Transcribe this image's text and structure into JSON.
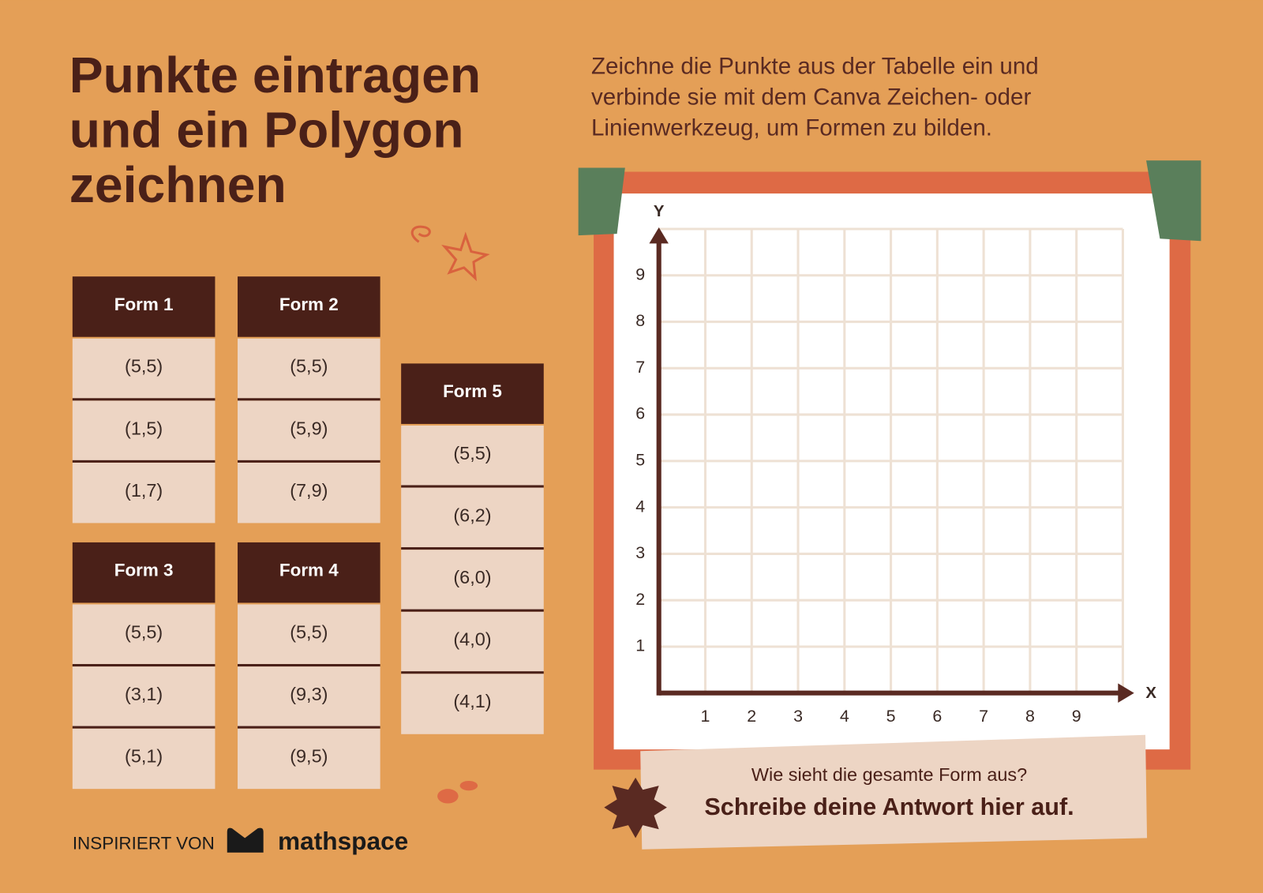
{
  "title_lines": [
    "Punkte eintragen",
    "und ein Polygon",
    "zeichnen"
  ],
  "instruction_lines": [
    "Zeichne die Punkte aus der Tabelle ein und",
    "verbinde sie mit dem Canva Zeichen- oder",
    "Linienwerkzeug, um Formen zu bilden."
  ],
  "tables": [
    {
      "header": "Form 1",
      "rows": [
        "(5,5)",
        "(1,5)",
        "(1,7)"
      ]
    },
    {
      "header": "Form 2",
      "rows": [
        "(5,5)",
        "(5,9)",
        "(7,9)"
      ]
    },
    {
      "header": "Form 3",
      "rows": [
        "(5,5)",
        "(3,1)",
        "(5,1)"
      ]
    },
    {
      "header": "Form 4",
      "rows": [
        "(5,5)",
        "(9,3)",
        "(9,5)"
      ]
    },
    {
      "header": "Form 5",
      "rows": [
        "(5,5)",
        "(6,2)",
        "(6,0)",
        "(4,0)",
        "(4,1)"
      ]
    }
  ],
  "grid": {
    "x_label": "X",
    "y_label": "Y",
    "xticks": [
      1,
      2,
      3,
      4,
      5,
      6,
      7,
      8,
      9
    ],
    "yticks": [
      1,
      2,
      3,
      4,
      5,
      6,
      7,
      8,
      9
    ]
  },
  "answer": {
    "question": "Wie sieht die gesamte Form aus?",
    "prompt": "Schreibe deine Antwort hier auf."
  },
  "footer": {
    "credit": "INSPIRIERT VON",
    "brand": "mathspace"
  }
}
